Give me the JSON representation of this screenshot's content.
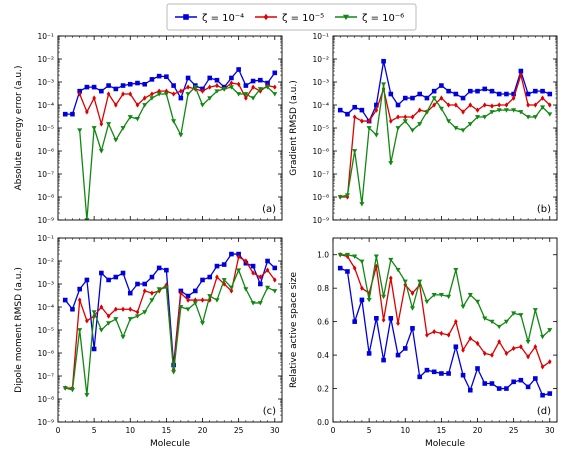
{
  "legend": {
    "entries": [
      {
        "label": "ζ = 10⁻⁴",
        "color": "#0000dd",
        "marker": "square"
      },
      {
        "label": "ζ = 10⁻⁵",
        "color": "#dd0000",
        "marker": "diamond"
      },
      {
        "label": "ζ = 10⁻⁶",
        "color": "#118811",
        "marker": "triangle-down"
      }
    ],
    "placement": "top-center"
  },
  "chart_data": [
    {
      "type": "line",
      "panel": "(a)",
      "ylabel": "Absolute energy error (a.u.)",
      "xlabel": "",
      "yscale": "log",
      "ylim": [
        1e-09,
        0.1
      ],
      "xlim": [
        0,
        31
      ],
      "yticks": [
        "10⁻⁹",
        "10⁻⁸",
        "10⁻⁷",
        "10⁻⁶",
        "10⁻⁵",
        "10⁻⁴",
        "10⁻³",
        "10⁻²",
        "10⁻¹"
      ],
      "xticks": [],
      "x": [
        1,
        2,
        3,
        4,
        5,
        6,
        7,
        8,
        9,
        10,
        11,
        12,
        13,
        14,
        15,
        16,
        17,
        18,
        19,
        20,
        21,
        22,
        23,
        24,
        25,
        26,
        27,
        28,
        29,
        30
      ],
      "series": [
        {
          "name": "ζ = 10⁻⁴",
          "values": [
            4e-05,
            4e-05,
            0.0004,
            0.0006,
            0.0006,
            0.0004,
            0.0007,
            0.0005,
            0.0007,
            0.0008,
            0.0009,
            0.0008,
            0.0013,
            0.0018,
            0.0017,
            0.0007,
            0.0002,
            0.0015,
            0.0007,
            0.0005,
            0.0015,
            0.0012,
            0.0006,
            0.0015,
            0.0035,
            0.0007,
            0.0011,
            0.0012,
            0.0009,
            0.0025
          ]
        },
        {
          "name": "ζ = 10⁻⁵",
          "values": [
            null,
            null,
            0.0003,
            5e-05,
            0.0002,
            1.5e-05,
            0.0003,
            0.0001,
            0.0003,
            0.0003,
            0.0001,
            0.0002,
            0.0003,
            0.0004,
            0.0004,
            0.0003,
            0.0004,
            0.0006,
            0.0005,
            0.0004,
            0.0006,
            0.0007,
            0.0005,
            0.0009,
            0.0008,
            0.0002,
            0.0006,
            0.0004,
            0.0007,
            0.0006
          ]
        },
        {
          "name": "ζ = 10⁻⁶",
          "values": [
            null,
            null,
            8e-06,
            1e-09,
            1e-05,
            1e-06,
            1.5e-05,
            3e-06,
            1e-05,
            3e-05,
            2.5e-05,
            0.0001,
            0.0002,
            0.0003,
            0.0003,
            2e-05,
            5e-06,
            0.0003,
            0.0006,
            0.0001,
            0.0002,
            0.0004,
            0.0005,
            0.0006,
            0.0003,
            0.0003,
            0.0002,
            0.0005,
            0.0006,
            0.0003
          ]
        }
      ]
    },
    {
      "type": "line",
      "panel": "(b)",
      "ylabel": "Gradient RMSD (a.u.)",
      "xlabel": "",
      "yscale": "log",
      "ylim": [
        1e-09,
        0.1
      ],
      "xlim": [
        0,
        31
      ],
      "yticks": [
        "10⁻⁹",
        "10⁻⁸",
        "10⁻⁷",
        "10⁻⁶",
        "10⁻⁵",
        "10⁻⁴",
        "10⁻³",
        "10⁻²",
        "10⁻¹"
      ],
      "xticks": [],
      "x": [
        1,
        2,
        3,
        4,
        5,
        6,
        7,
        8,
        9,
        10,
        11,
        12,
        13,
        14,
        15,
        16,
        17,
        18,
        19,
        20,
        21,
        22,
        23,
        24,
        25,
        26,
        27,
        28,
        29,
        30
      ],
      "series": [
        {
          "name": "ζ = 10⁻⁴",
          "values": [
            6e-05,
            4e-05,
            8e-05,
            6e-05,
            2e-05,
            0.0001,
            0.008,
            0.0003,
            0.0001,
            0.0002,
            0.0002,
            0.0003,
            0.0002,
            0.0004,
            0.0007,
            0.0004,
            0.0003,
            0.0002,
            0.0004,
            0.0004,
            0.0005,
            0.0004,
            0.0003,
            0.0003,
            0.0003,
            0.003,
            0.0003,
            0.0004,
            0.0004,
            0.0003
          ]
        },
        {
          "name": "ζ = 10⁻⁵",
          "values": [
            1e-08,
            1e-08,
            3e-05,
            2e-05,
            2e-05,
            6e-05,
            0.0005,
            2e-05,
            3e-05,
            3e-05,
            3e-05,
            6e-05,
            5e-05,
            0.0001,
            0.0002,
            0.0001,
            0.0001,
            5e-05,
            0.0001,
            6e-05,
            0.0001,
            9e-05,
            0.0001,
            0.0001,
            0.0002,
            0.002,
            0.0001,
            0.0001,
            0.0002,
            0.0001
          ]
        },
        {
          "name": "ζ = 10⁻⁶",
          "values": [
            1e-08,
            1.2e-08,
            1e-06,
            5e-09,
            1e-05,
            5e-06,
            0.0008,
            3e-07,
            1e-05,
            2e-05,
            8e-06,
            1.5e-05,
            5e-05,
            0.0002,
            7e-05,
            2e-05,
            1e-05,
            8e-06,
            1.5e-05,
            3e-05,
            3e-05,
            5e-05,
            6e-05,
            6e-05,
            6e-05,
            5e-05,
            3e-05,
            3e-05,
            8e-05,
            4e-05
          ]
        }
      ]
    },
    {
      "type": "line",
      "panel": "(c)",
      "ylabel": "Dipole moment RMSD (a.u.)",
      "xlabel": "Molecule",
      "yscale": "log",
      "ylim": [
        1e-09,
        0.1
      ],
      "xlim": [
        0,
        31
      ],
      "yticks": [
        "10⁻⁹",
        "10⁻⁸",
        "10⁻⁷",
        "10⁻⁶",
        "10⁻⁵",
        "10⁻⁴",
        "10⁻³",
        "10⁻²",
        "10⁻¹"
      ],
      "xticks": [
        "0",
        "5",
        "10",
        "15",
        "20",
        "25",
        "30"
      ],
      "x": [
        1,
        2,
        3,
        4,
        5,
        6,
        7,
        8,
        9,
        10,
        11,
        12,
        13,
        14,
        15,
        16,
        17,
        18,
        19,
        20,
        21,
        22,
        23,
        24,
        25,
        26,
        27,
        28,
        29,
        30
      ],
      "series": [
        {
          "name": "ζ = 10⁻⁴",
          "values": [
            0.0002,
            8e-05,
            0.0006,
            0.0015,
            1.5e-06,
            0.003,
            0.0015,
            0.002,
            0.003,
            0.0004,
            0.001,
            0.001,
            0.002,
            0.005,
            0.004,
            3e-07,
            0.0005,
            0.0003,
            0.0005,
            0.0015,
            0.002,
            0.006,
            0.007,
            0.02,
            0.02,
            0.008,
            0.006,
            0.001,
            0.01,
            0.005
          ]
        },
        {
          "name": "ζ = 10⁻⁵",
          "values": [
            3e-08,
            3e-08,
            0.0002,
            2.5e-05,
            4e-05,
            0.0001,
            4e-05,
            8e-05,
            8e-05,
            8e-05,
            6e-05,
            0.0005,
            0.0004,
            0.0005,
            0.0009,
            2e-07,
            0.0004,
            0.0002,
            0.0002,
            0.0002,
            0.0002,
            0.002,
            0.001,
            0.0005,
            0.015,
            0.01,
            0.003,
            0.002,
            0.004,
            0.0015
          ]
        },
        {
          "name": "ζ = 10⁻⁶",
          "values": [
            3e-08,
            2.5e-08,
            1e-05,
            1.5e-08,
            6e-05,
            1e-05,
            2e-05,
            3e-05,
            5e-06,
            3e-05,
            4e-05,
            6e-05,
            0.0002,
            0.0006,
            0.0007,
            1.5e-07,
            0.0001,
            8e-05,
            0.00015,
            2e-05,
            0.0003,
            0.0002,
            0.0015,
            0.0007,
            0.004,
            0.0006,
            0.00015,
            0.00015,
            0.0007,
            0.0005
          ]
        }
      ]
    },
    {
      "type": "line",
      "panel": "(d)",
      "ylabel": "Relative active space size",
      "xlabel": "Molecule",
      "yscale": "linear",
      "ylim": [
        0,
        1.1
      ],
      "xlim": [
        0,
        31
      ],
      "yticks": [
        "0.0",
        "0.2",
        "0.4",
        "0.6",
        "0.8",
        "1.0"
      ],
      "xticks": [
        "0",
        "5",
        "10",
        "15",
        "20",
        "25",
        "30"
      ],
      "x": [
        1,
        2,
        3,
        4,
        5,
        6,
        7,
        8,
        9,
        10,
        11,
        12,
        13,
        14,
        15,
        16,
        17,
        18,
        19,
        20,
        21,
        22,
        23,
        24,
        25,
        26,
        27,
        28,
        29,
        30
      ],
      "series": [
        {
          "name": "ζ = 10⁻⁴",
          "values": [
            0.92,
            0.9,
            0.6,
            0.73,
            0.41,
            0.62,
            0.37,
            0.62,
            0.4,
            0.44,
            0.56,
            0.27,
            0.31,
            0.3,
            0.29,
            0.29,
            0.45,
            0.28,
            0.19,
            0.32,
            0.23,
            0.23,
            0.2,
            0.2,
            0.24,
            0.25,
            0.21,
            0.26,
            0.16,
            0.17
          ]
        },
        {
          "name": "ζ = 10⁻⁵",
          "values": [
            1.0,
            0.99,
            0.92,
            0.8,
            0.77,
            0.93,
            0.61,
            0.86,
            0.59,
            0.82,
            0.77,
            0.82,
            0.52,
            0.54,
            0.53,
            0.52,
            0.6,
            0.43,
            0.5,
            0.47,
            0.41,
            0.4,
            0.48,
            0.41,
            0.44,
            0.45,
            0.39,
            0.45,
            0.33,
            0.36
          ]
        },
        {
          "name": "ζ = 10⁻⁶",
          "values": [
            1.0,
            1.0,
            0.99,
            0.96,
            0.73,
            0.99,
            0.75,
            0.97,
            0.91,
            0.84,
            0.68,
            0.84,
            0.72,
            0.76,
            0.76,
            0.75,
            0.91,
            0.69,
            0.76,
            0.72,
            0.62,
            0.6,
            0.57,
            0.6,
            0.65,
            0.64,
            0.48,
            0.67,
            0.51,
            0.55
          ]
        }
      ]
    }
  ]
}
